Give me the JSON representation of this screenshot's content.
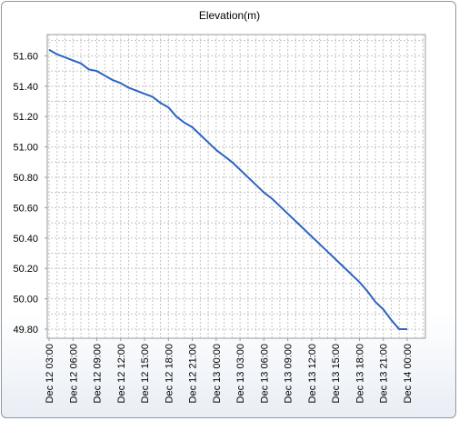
{
  "chart_data": {
    "type": "line",
    "title": "Elevation(m)",
    "xlabel": "",
    "ylabel": "",
    "ylim": [
      49.74,
      51.74
    ],
    "y_ticks": [
      "51.60",
      "51.40",
      "51.20",
      "51.00",
      "50.80",
      "50.60",
      "50.40",
      "50.20",
      "50.00",
      "49.80"
    ],
    "x_tick_labels": [
      "Dec 12 03:00",
      "Dec 12 06:00",
      "Dec 12 09:00",
      "Dec 12 12:00",
      "Dec 12 15:00",
      "Dec 12 18:00",
      "Dec 12 21:00",
      "Dec 13 00:00",
      "Dec 13 03:00",
      "Dec 13 06:00",
      "Dec 13 09:00",
      "Dec 13 12:00",
      "Dec 13 15:00",
      "Dec 13 18:00",
      "Dec 13 21:00",
      "Dec 14 00:00"
    ],
    "grid": true,
    "line_color": "#2e64be",
    "series": [
      {
        "x": [
          "Dec 12 03:00",
          "Dec 12 04:00",
          "Dec 12 05:00",
          "Dec 12 06:00",
          "Dec 12 07:00",
          "Dec 12 08:00",
          "Dec 12 09:00",
          "Dec 12 10:00",
          "Dec 12 11:00",
          "Dec 12 12:00",
          "Dec 12 13:00",
          "Dec 12 14:00",
          "Dec 12 15:00",
          "Dec 12 16:00",
          "Dec 12 17:00",
          "Dec 12 18:00",
          "Dec 12 19:00",
          "Dec 12 20:00",
          "Dec 12 21:00",
          "Dec 12 22:00",
          "Dec 12 23:00",
          "Dec 13 00:00",
          "Dec 13 01:00",
          "Dec 13 02:00",
          "Dec 13 03:00",
          "Dec 13 04:00",
          "Dec 13 05:00",
          "Dec 13 06:00",
          "Dec 13 07:00",
          "Dec 13 08:00",
          "Dec 13 09:00",
          "Dec 13 10:00",
          "Dec 13 11:00",
          "Dec 13 12:00",
          "Dec 13 13:00",
          "Dec 13 14:00",
          "Dec 13 15:00",
          "Dec 13 16:00",
          "Dec 13 17:00",
          "Dec 13 18:00",
          "Dec 13 19:00",
          "Dec 13 20:00",
          "Dec 13 21:00",
          "Dec 13 22:00",
          "Dec 13 23:00",
          "Dec 14 00:00",
          "Dec 14 01:00",
          "Dec 14 02:00"
        ],
        "values": [
          51.64,
          51.61,
          51.59,
          51.57,
          51.55,
          51.51,
          51.5,
          51.47,
          51.44,
          51.42,
          51.39,
          51.37,
          51.35,
          51.33,
          51.29,
          51.26,
          51.2,
          51.16,
          51.13,
          51.08,
          51.03,
          50.98,
          50.94,
          50.9,
          50.85,
          50.8,
          50.75,
          50.7,
          50.66,
          50.61,
          50.56,
          50.51,
          50.46,
          50.41,
          50.36,
          50.31,
          50.26,
          50.21,
          50.16,
          50.11,
          50.05,
          49.98,
          49.93,
          49.86,
          49.8,
          49.8,
          49.8,
          49.8
        ]
      }
    ]
  }
}
